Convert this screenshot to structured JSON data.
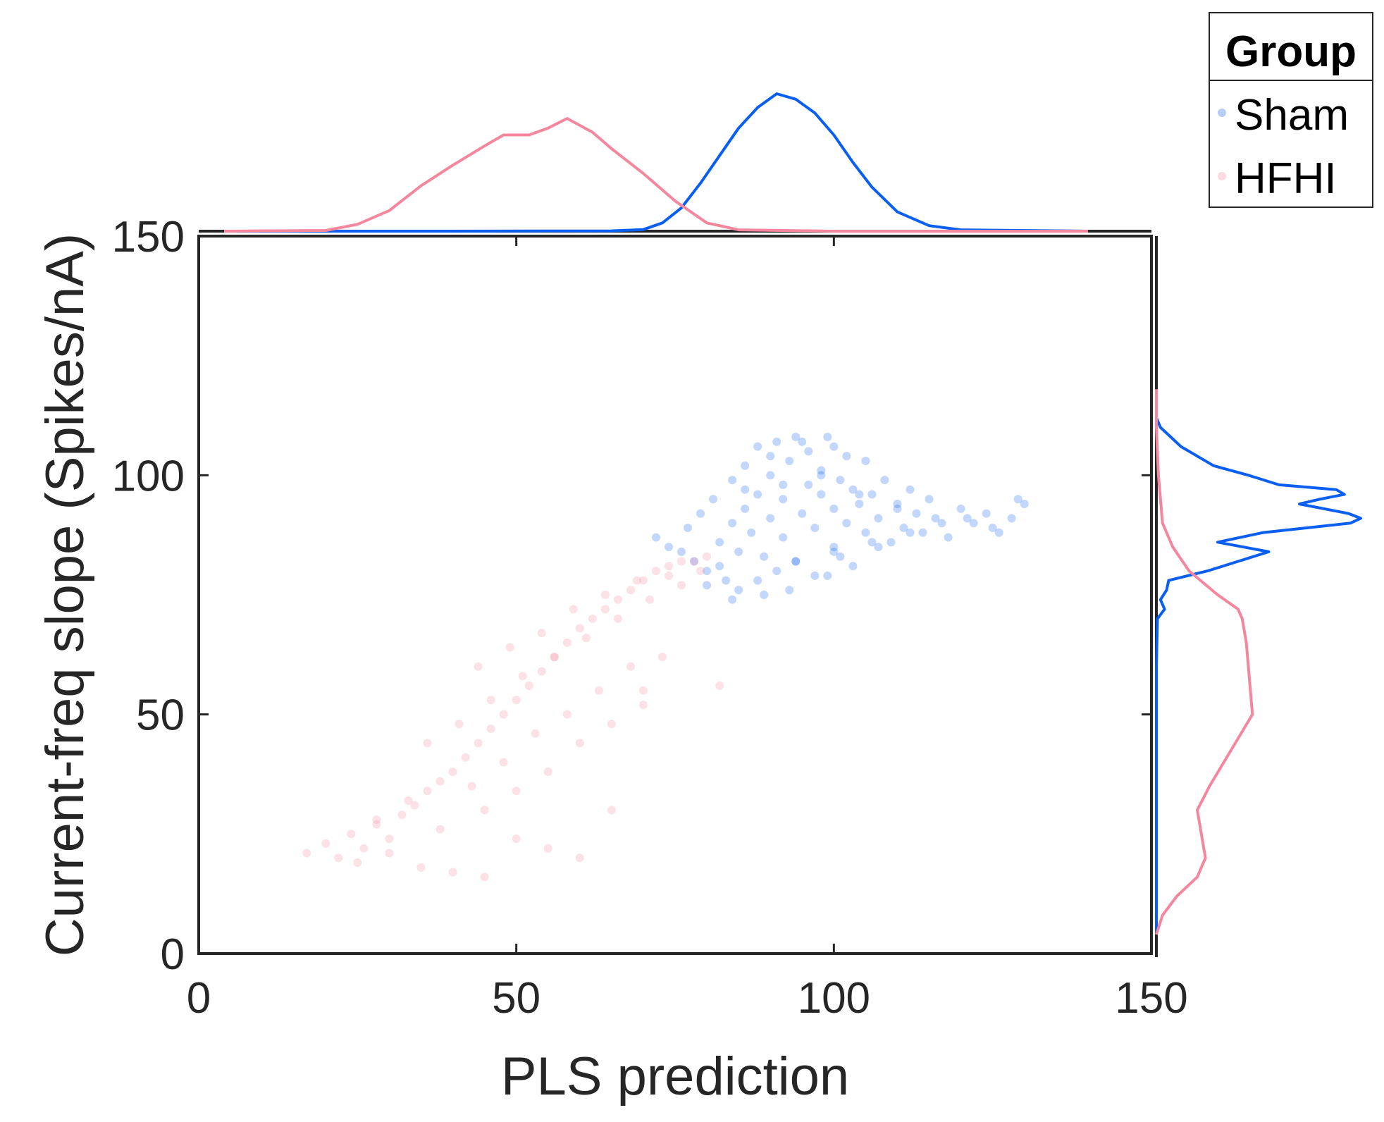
{
  "chart_data": {
    "type": "scatter",
    "xlabel": "PLS prediction",
    "ylabel": "Current-freq slope (Spikes/nA)",
    "xlim": [
      0,
      150
    ],
    "ylim": [
      0,
      150
    ],
    "xticks": [
      "0",
      "50",
      "100",
      "150"
    ],
    "yticks": [
      "0",
      "50",
      "100",
      "150"
    ],
    "grid": false,
    "legend": {
      "title": "Group",
      "placement": "top-right outside",
      "entries": [
        "Sham",
        "HFHI"
      ]
    },
    "colors": {
      "Sham": "#0a5ff0",
      "HFHI": "#f4879e",
      "axes": "#262626"
    },
    "series": [
      {
        "name": "Sham",
        "marker_alpha": 0.25,
        "x": [
          72,
          74,
          76,
          77,
          78,
          79,
          80,
          81,
          82,
          83,
          84,
          84,
          85,
          86,
          86,
          87,
          88,
          88,
          89,
          90,
          90,
          91,
          92,
          92,
          93,
          94,
          94,
          95,
          96,
          96,
          97,
          98,
          98,
          99,
          100,
          100,
          101,
          102,
          102,
          103,
          104,
          105,
          106,
          107,
          108,
          109,
          110,
          111,
          112,
          113,
          114,
          115,
          116,
          118,
          120,
          122,
          124,
          126,
          128,
          130,
          85,
          88,
          91,
          94,
          97,
          100,
          103,
          106,
          90,
          95,
          100,
          105,
          86,
          92,
          98,
          104,
          110,
          84,
          80,
          82,
          89,
          93,
          99,
          101,
          107,
          112,
          117,
          121,
          125,
          129
        ],
        "y": [
          87,
          85,
          84,
          89,
          82,
          92,
          80,
          95,
          86,
          78,
          90,
          99,
          84,
          93,
          102,
          88,
          96,
          106,
          83,
          91,
          100,
          107,
          87,
          95,
          103,
          108,
          82,
          92,
          98,
          105,
          89,
          96,
          101,
          108,
          85,
          93,
          99,
          104,
          90,
          97,
          94,
          88,
          96,
          91,
          99,
          86,
          93,
          89,
          97,
          92,
          88,
          95,
          91,
          87,
          93,
          90,
          92,
          88,
          91,
          94,
          76,
          78,
          80,
          82,
          79,
          84,
          81,
          86,
          104,
          107,
          106,
          103,
          97,
          98,
          100,
          96,
          94,
          74,
          77,
          81,
          75,
          76,
          79,
          83,
          85,
          88,
          90,
          91,
          89,
          95
        ]
      },
      {
        "name": "HFHI",
        "marker_alpha": 0.25,
        "x": [
          17,
          20,
          22,
          24,
          26,
          28,
          30,
          32,
          34,
          36,
          38,
          40,
          42,
          44,
          46,
          48,
          50,
          52,
          54,
          56,
          58,
          60,
          62,
          64,
          66,
          68,
          70,
          72,
          74,
          76,
          78,
          80,
          25,
          30,
          35,
          40,
          45,
          50,
          55,
          60,
          65,
          70,
          28,
          33,
          38,
          43,
          48,
          53,
          58,
          63,
          68,
          73,
          36,
          41,
          46,
          51,
          56,
          61,
          66,
          71,
          76,
          82,
          45,
          50,
          55,
          60,
          65,
          70,
          44,
          49,
          54,
          59,
          64,
          69,
          74,
          79
        ],
        "y": [
          21,
          23,
          20,
          25,
          22,
          27,
          24,
          29,
          31,
          34,
          36,
          38,
          41,
          44,
          47,
          50,
          53,
          56,
          59,
          62,
          65,
          68,
          70,
          72,
          74,
          76,
          78,
          80,
          81,
          82,
          82,
          83,
          19,
          21,
          18,
          17,
          16,
          24,
          22,
          20,
          30,
          52,
          28,
          32,
          26,
          35,
          40,
          46,
          50,
          55,
          60,
          62,
          44,
          48,
          53,
          58,
          62,
          66,
          70,
          74,
          77,
          56,
          30,
          34,
          38,
          44,
          48,
          55,
          60,
          64,
          67,
          72,
          75,
          78,
          79,
          80
        ]
      }
    ],
    "marginal_x": [
      {
        "name": "Sham",
        "x": [
          4,
          40,
          65,
          70,
          73,
          76,
          79,
          82,
          85,
          88,
          91,
          94,
          97,
          100,
          103,
          106,
          110,
          115,
          120,
          140
        ],
        "density": [
          0,
          0,
          0.002,
          0.012,
          0.06,
          0.17,
          0.35,
          0.55,
          0.75,
          0.9,
          1.0,
          0.96,
          0.86,
          0.7,
          0.5,
          0.32,
          0.14,
          0.04,
          0.01,
          0
        ]
      },
      {
        "name": "HFHI",
        "x": [
          4,
          20,
          25,
          30,
          35,
          40,
          45,
          48,
          52,
          55,
          58,
          62,
          65,
          70,
          75,
          80,
          85,
          100,
          140
        ],
        "density": [
          0,
          0.005,
          0.05,
          0.15,
          0.33,
          0.48,
          0.62,
          0.7,
          0.7,
          0.75,
          0.82,
          0.72,
          0.6,
          0.42,
          0.22,
          0.06,
          0.01,
          0,
          0
        ]
      }
    ],
    "marginal_y": [
      {
        "name": "Sham",
        "y": [
          4,
          60,
          70,
          72,
          74,
          76,
          78,
          80,
          82,
          84,
          86,
          88,
          90,
          91,
          92,
          94,
          95,
          96,
          97,
          98,
          100,
          102,
          104,
          106,
          108,
          110,
          112
        ],
        "density": [
          0,
          0,
          0.005,
          0.04,
          0.02,
          0.05,
          0.06,
          0.25,
          0.4,
          0.55,
          0.3,
          0.52,
          0.95,
          1.0,
          0.94,
          0.7,
          0.8,
          0.92,
          0.88,
          0.6,
          0.45,
          0.28,
          0.2,
          0.12,
          0.07,
          0.02,
          0
        ]
      },
      {
        "name": "HFHI",
        "y": [
          4,
          8,
          12,
          16,
          20,
          25,
          30,
          35,
          40,
          45,
          50,
          55,
          60,
          65,
          70,
          72,
          75,
          80,
          85,
          90,
          100,
          110,
          118
        ],
        "density": [
          0,
          0.03,
          0.1,
          0.2,
          0.24,
          0.22,
          0.2,
          0.26,
          0.33,
          0.4,
          0.47,
          0.46,
          0.45,
          0.44,
          0.42,
          0.4,
          0.3,
          0.16,
          0.08,
          0.03,
          0.01,
          0,
          0
        ]
      }
    ]
  }
}
